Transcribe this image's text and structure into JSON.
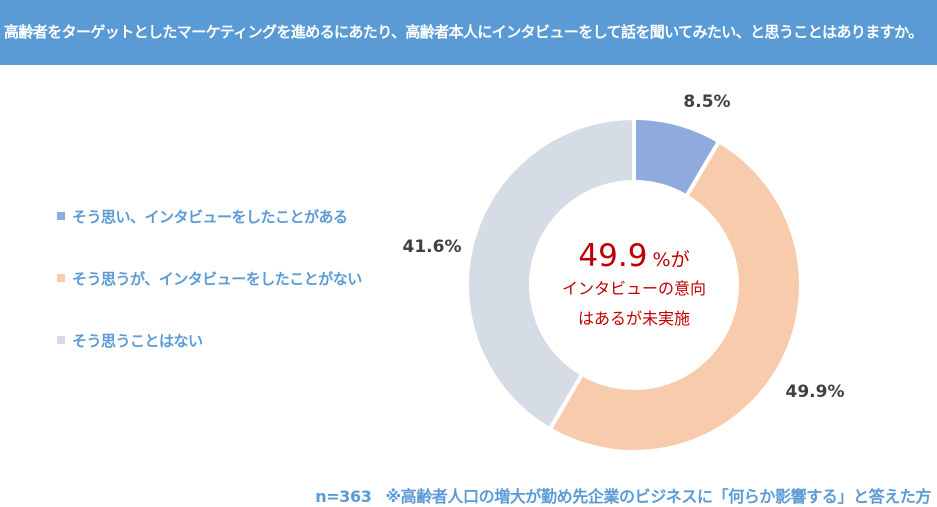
{
  "header": {
    "title": "高齢者をターゲットとしたマーケティングを進めるにあたり、高齢者本人にインタビューをして話を聞いてみたい、と思うことはありますか。"
  },
  "chart_data": {
    "type": "pie",
    "donut": true,
    "categories": [
      "そう思い、インタビューをしたことがある",
      "そう思うが、インタビューをしたことがない",
      "そう思うことはない"
    ],
    "values": [
      8.5,
      49.9,
      41.6
    ],
    "labels": [
      "8.5%",
      "49.9%",
      "41.6%"
    ],
    "colors": [
      "#8FAADC",
      "#F8CBAD",
      "#D6DCE5"
    ],
    "legend_position": "left"
  },
  "center": {
    "value": "49.9",
    "unit": "%が",
    "line1": "インタビューの意向",
    "line2": "はあるが未実施"
  },
  "footer": {
    "n": "n=363",
    "note": "※高齢者人口の増大が勤め先企業のビジネスに「何らか影響する」と答えた方"
  }
}
